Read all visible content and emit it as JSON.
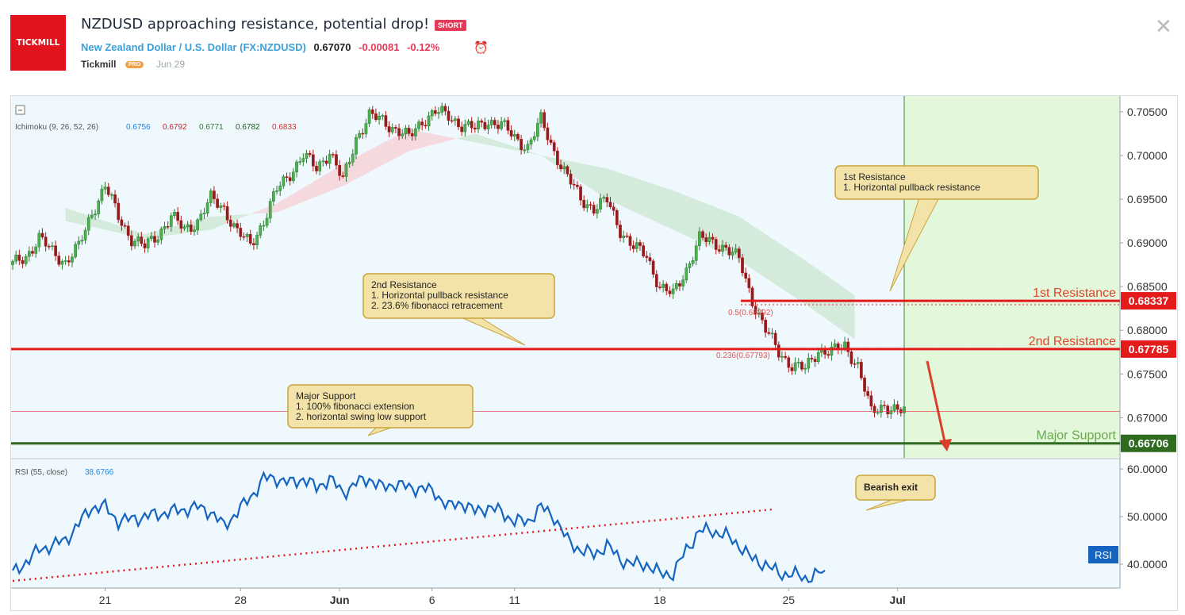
{
  "header": {
    "logo_text": "TICKMILL",
    "title": "NZDUSD approaching resistance, potential drop!",
    "badge": "SHORT",
    "pair_name": "New Zealand Dollar / U.S. Dollar",
    "ticker": "(FX:NZDUSD)",
    "price": "0.67070",
    "change": "-0.00081",
    "change_pct": "-0.12%",
    "author": "Tickmill",
    "author_badge": "PRO",
    "date": "Jun 29"
  },
  "colors": {
    "up": "#2e7d32",
    "down": "#b71c1c",
    "resistance": "#e31b1b",
    "support": "#2e6b1f",
    "rsi": "#1565c0",
    "target_zone": "#e3f8da",
    "chart_bg": "#eef8fd"
  },
  "chart_data": [
    {
      "type": "candlestick",
      "indicator_label": "Ichimoku (9, 26, 52, 26)",
      "indicator_values": [
        "0.6756",
        "0.6792",
        "0.6771",
        "0.6782",
        "0.6833"
      ],
      "x_ticks": [
        "21",
        "28",
        "Jun",
        "6",
        "11",
        "18",
        "25",
        "Jul"
      ],
      "y_ticks": [
        "0.70500",
        "0.70000",
        "0.69500",
        "0.69000",
        "0.68500",
        "0.68000",
        "0.67500",
        "0.67000"
      ],
      "ylim": [
        0.6654,
        0.7068
      ],
      "close_path": [
        [
          0,
          0.6875
        ],
        [
          4,
          0.6885
        ],
        [
          8,
          0.6905
        ],
        [
          12,
          0.689
        ],
        [
          16,
          0.6878
        ],
        [
          20,
          0.6895
        ],
        [
          24,
          0.6935
        ],
        [
          28,
          0.6965
        ],
        [
          32,
          0.693
        ],
        [
          36,
          0.6905
        ],
        [
          40,
          0.6895
        ],
        [
          44,
          0.691
        ],
        [
          48,
          0.693
        ],
        [
          52,
          0.6915
        ],
        [
          56,
          0.6925
        ],
        [
          60,
          0.695
        ],
        [
          64,
          0.694
        ],
        [
          68,
          0.6912
        ],
        [
          72,
          0.6898
        ],
        [
          76,
          0.6925
        ],
        [
          80,
          0.696
        ],
        [
          84,
          0.698
        ],
        [
          88,
          0.7
        ],
        [
          92,
          0.6985
        ],
        [
          96,
          0.7005
        ],
        [
          100,
          0.697
        ],
        [
          104,
          0.702
        ],
        [
          108,
          0.7045
        ],
        [
          112,
          0.704
        ],
        [
          116,
          0.703
        ],
        [
          120,
          0.702
        ],
        [
          124,
          0.704
        ],
        [
          128,
          0.705
        ],
        [
          132,
          0.7045
        ],
        [
          136,
          0.7035
        ],
        [
          140,
          0.703
        ],
        [
          144,
          0.704
        ],
        [
          148,
          0.7035
        ],
        [
          152,
          0.702
        ],
        [
          156,
          0.701
        ],
        [
          160,
          0.704
        ],
        [
          164,
          0.7005
        ],
        [
          168,
          0.6975
        ],
        [
          172,
          0.695
        ],
        [
          176,
          0.694
        ],
        [
          180,
          0.6948
        ],
        [
          184,
          0.6915
        ],
        [
          188,
          0.6895
        ],
        [
          192,
          0.6885
        ],
        [
          196,
          0.685
        ],
        [
          200,
          0.684
        ],
        [
          204,
          0.687
        ],
        [
          208,
          0.6905
        ],
        [
          212,
          0.69
        ],
        [
          216,
          0.6895
        ],
        [
          220,
          0.688
        ],
        [
          224,
          0.6835
        ],
        [
          228,
          0.68
        ],
        [
          232,
          0.6775
        ],
        [
          236,
          0.676
        ],
        [
          240,
          0.6755
        ],
        [
          244,
          0.6778
        ],
        [
          248,
          0.6775
        ],
        [
          252,
          0.6782
        ],
        [
          256,
          0.676
        ],
        [
          260,
          0.6705
        ],
        [
          264,
          0.6715
        ],
        [
          268,
          0.6707
        ]
      ],
      "ichimoku_cloud": [
        [
          16,
          0.694,
          0.6925
        ],
        [
          40,
          0.691,
          0.6905
        ],
        [
          60,
          0.693,
          0.6915
        ],
        [
          80,
          0.6935,
          0.6945
        ],
        [
          100,
          0.6965,
          0.699
        ],
        [
          120,
          0.7005,
          0.703
        ],
        [
          140,
          0.7025,
          0.7015
        ],
        [
          160,
          0.7,
          0.7
        ],
        [
          180,
          0.6985,
          0.695
        ],
        [
          200,
          0.696,
          0.6915
        ],
        [
          220,
          0.693,
          0.688
        ],
        [
          240,
          0.688,
          0.683
        ],
        [
          255,
          0.684,
          0.679
        ]
      ],
      "levels": [
        {
          "label": "1st Resistance",
          "value": "0.68337",
          "kind": "resistance"
        },
        {
          "label": "2nd Resistance",
          "value": "0.67785",
          "kind": "resistance"
        },
        {
          "label": "Major Support",
          "value": "0.66706",
          "kind": "support"
        }
      ],
      "current_price": "0.67070",
      "fib_labels": [
        "0.5(0.68292)",
        "0.236(0.67793)"
      ],
      "annotations": [
        {
          "title": "1st Resistance",
          "lines": [
            "1. Horizontal pullback resistance"
          ]
        },
        {
          "title": "2nd Resistance",
          "lines": [
            "1. Horizontal pullback resistance",
            "2. 23.6% fibonacci retracement"
          ]
        },
        {
          "title": "Major Support",
          "lines": [
            "1. 100% fibonacci extension",
            "2. horizontal swing low support"
          ]
        }
      ]
    },
    {
      "type": "line",
      "label": "RSI (55, close)",
      "value_text": "38.6766",
      "tag": "RSI",
      "y_ticks": [
        "60.0000",
        "50.0000",
        "40.0000"
      ],
      "ylim": [
        35,
        62
      ],
      "series": [
        [
          0,
          38
        ],
        [
          8,
          43
        ],
        [
          16,
          45
        ],
        [
          24,
          52
        ],
        [
          28,
          52
        ],
        [
          32,
          49
        ],
        [
          40,
          50
        ],
        [
          48,
          51
        ],
        [
          56,
          52
        ],
        [
          60,
          51
        ],
        [
          64,
          48
        ],
        [
          68,
          51
        ],
        [
          72,
          54
        ],
        [
          76,
          58
        ],
        [
          80,
          58
        ],
        [
          84,
          57
        ],
        [
          88,
          58
        ],
        [
          92,
          56
        ],
        [
          96,
          58
        ],
        [
          100,
          55
        ],
        [
          104,
          57
        ],
        [
          108,
          58
        ],
        [
          112,
          56
        ],
        [
          116,
          57
        ],
        [
          120,
          56
        ],
        [
          124,
          56
        ],
        [
          128,
          55
        ],
        [
          132,
          52
        ],
        [
          136,
          53
        ],
        [
          140,
          51
        ],
        [
          144,
          52
        ],
        [
          148,
          51
        ],
        [
          152,
          49
        ],
        [
          156,
          49
        ],
        [
          160,
          52
        ],
        [
          164,
          50
        ],
        [
          168,
          45
        ],
        [
          172,
          43
        ],
        [
          176,
          42
        ],
        [
          180,
          44
        ],
        [
          184,
          41
        ],
        [
          188,
          40
        ],
        [
          192,
          40
        ],
        [
          196,
          38
        ],
        [
          200,
          38
        ],
        [
          204,
          43
        ],
        [
          208,
          47
        ],
        [
          212,
          47
        ],
        [
          216,
          46
        ],
        [
          220,
          44
        ],
        [
          224,
          41
        ],
        [
          228,
          40
        ],
        [
          232,
          38
        ],
        [
          236,
          38
        ],
        [
          240,
          37
        ],
        [
          244,
          38
        ],
        [
          246,
          38.6766
        ]
      ],
      "trendline": [
        [
          0,
          36.5
        ],
        [
          230,
          51.5
        ]
      ],
      "annotation": "Bearish exit"
    }
  ]
}
